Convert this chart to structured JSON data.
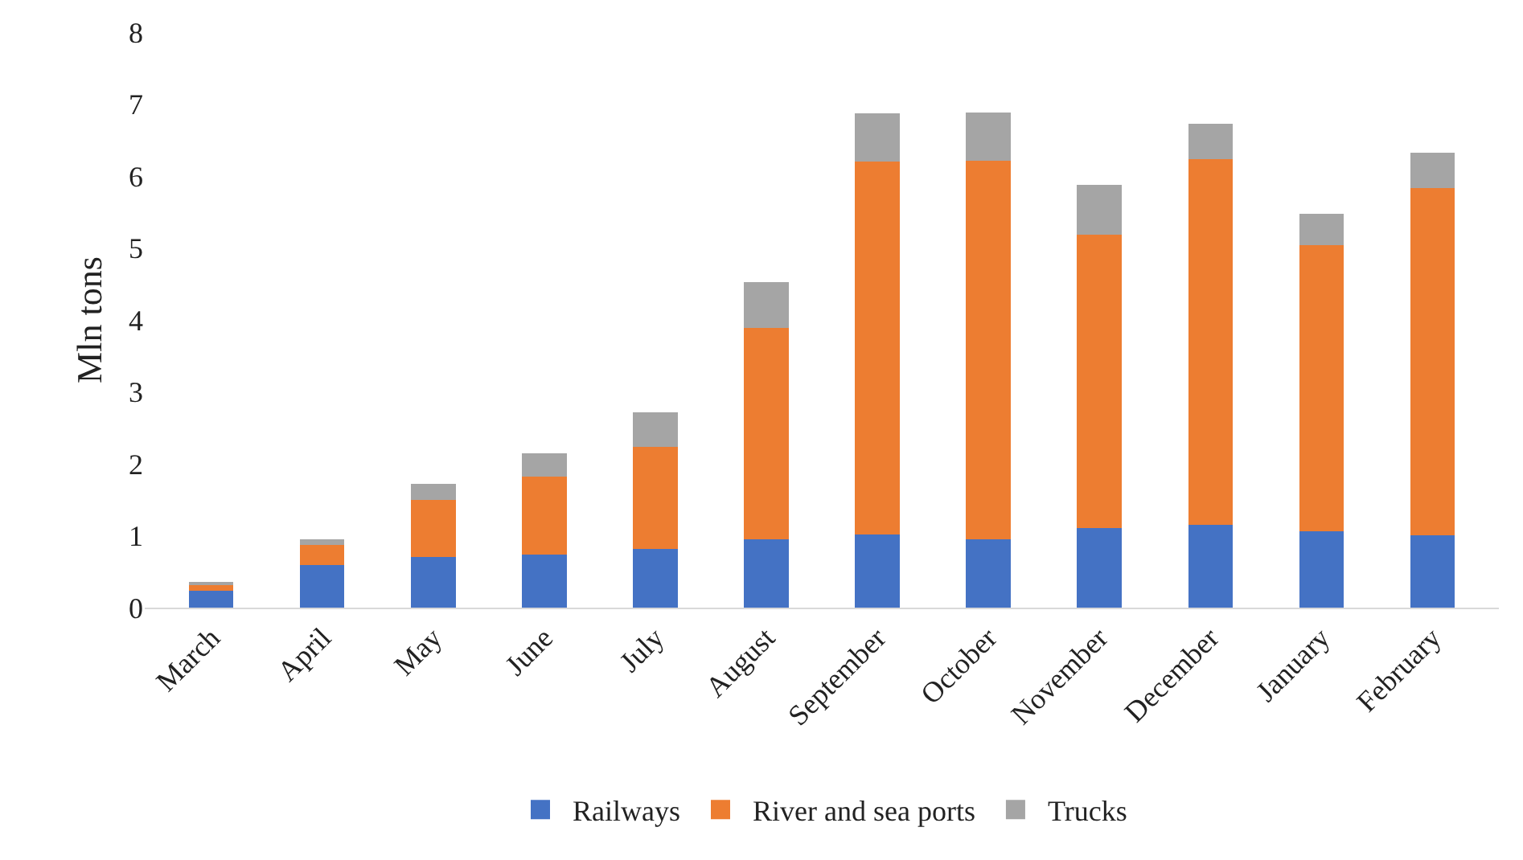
{
  "chart_data": {
    "type": "bar",
    "stacked": true,
    "ylabel": "Mln tons",
    "categories": [
      "March",
      "April",
      "May",
      "June",
      "July",
      "August",
      "September",
      "October",
      "November",
      "December",
      "January",
      "February"
    ],
    "series": [
      {
        "name": "Railways",
        "color": "#4472c4",
        "values": [
          0.24,
          0.59,
          0.7,
          0.74,
          0.82,
          0.95,
          1.02,
          0.95,
          1.11,
          1.15,
          1.06,
          1.01
        ]
      },
      {
        "name": "River and sea ports",
        "color": "#ed7d31",
        "values": [
          0.08,
          0.28,
          0.8,
          1.08,
          1.41,
          2.94,
          5.18,
          5.26,
          4.08,
          5.09,
          3.98,
          4.82
        ]
      },
      {
        "name": "Trucks",
        "color": "#a5a5a5",
        "values": [
          0.02,
          0.08,
          0.22,
          0.32,
          0.48,
          0.63,
          0.67,
          0.67,
          0.69,
          0.49,
          0.43,
          0.49
        ]
      }
    ],
    "ylim": [
      0,
      8
    ],
    "yticks": [
      0,
      1,
      2,
      3,
      4,
      5,
      6,
      7,
      8
    ],
    "grid": false,
    "legend": "bottom"
  }
}
